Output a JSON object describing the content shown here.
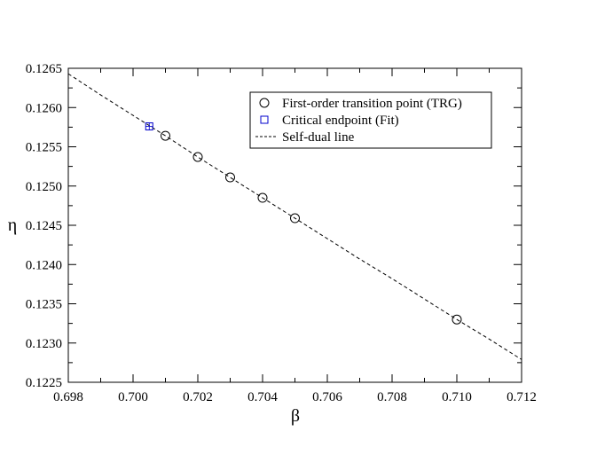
{
  "chart_data": {
    "type": "scatter",
    "xlabel": "β",
    "ylabel": "η",
    "xlim": [
      0.698,
      0.712
    ],
    "ylim": [
      0.1225,
      0.1265
    ],
    "x_ticks": [
      "0.698",
      "0.700",
      "0.702",
      "0.704",
      "0.706",
      "0.708",
      "0.710",
      "0.712"
    ],
    "y_ticks": [
      "0.1225",
      "0.1230",
      "0.1235",
      "0.1240",
      "0.1245",
      "0.1250",
      "0.1255",
      "0.1260",
      "0.1265"
    ],
    "legend_position": "top-right",
    "grid": false,
    "series": [
      {
        "name": "First-order transition point (TRG)",
        "kind": "circle",
        "color": "#000000",
        "x": [
          0.701,
          0.702,
          0.703,
          0.704,
          0.705,
          0.71
        ],
        "y": [
          0.12564,
          0.12537,
          0.12511,
          0.12485,
          0.12459,
          0.1233
        ]
      },
      {
        "name": "Critical endpoint (Fit)",
        "kind": "square",
        "color": "#0000cc",
        "x": [
          0.7005
        ],
        "y": [
          0.12576
        ]
      },
      {
        "name": "Self-dual line",
        "kind": "dashed-line",
        "color": "#000000",
        "x": [
          0.698,
          0.699,
          0.7,
          0.701,
          0.702,
          0.703,
          0.704,
          0.705,
          0.706,
          0.707,
          0.708,
          0.709,
          0.71,
          0.711,
          0.712
        ],
        "y": [
          0.12643,
          0.12616,
          0.1259,
          0.12564,
          0.12537,
          0.12511,
          0.12485,
          0.12459,
          0.12433,
          0.12407,
          0.12382,
          0.12356,
          0.1233,
          0.12305,
          0.12279
        ]
      }
    ]
  }
}
